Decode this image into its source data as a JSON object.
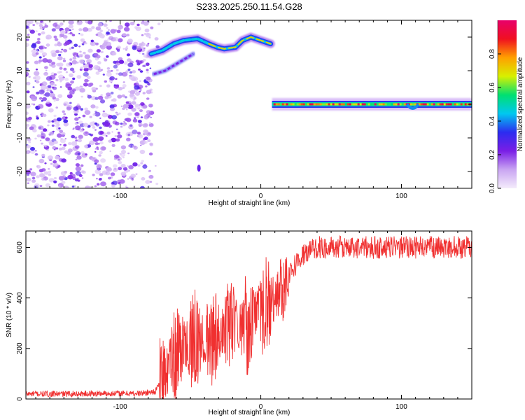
{
  "chart_data": [
    {
      "type": "heatmap",
      "title": "S233.2025.250.11.54.G28",
      "xlabel": "Height of straight line (km)",
      "ylabel": "Frequency (Hz)",
      "xlim": [
        -167,
        150
      ],
      "ylim": [
        -25,
        25
      ],
      "xticks": [
        -100,
        0,
        100
      ],
      "yticks": [
        -20,
        -10,
        0,
        10,
        20
      ],
      "grid": false,
      "colorbar": {
        "label": "Normalized spectral amplitude",
        "ticks": [
          0.0,
          0.2,
          0.4,
          0.6,
          0.8
        ],
        "range": [
          0,
          1
        ],
        "colors": [
          "#f4ecfb",
          "#c9a5f2",
          "#7a1ee6",
          "#2c2cf0",
          "#00c8f0",
          "#00e070",
          "#d8f000",
          "#ffa000",
          "#f01020",
          "#e8006a"
        ]
      },
      "regions": [
        {
          "name": "noise",
          "x": [
            -167,
            -77
          ],
          "y": [
            -25,
            25
          ],
          "amplitude": [
            0.05,
            0.3
          ]
        },
        {
          "name": "upper trace",
          "x": [
            -78,
            8
          ],
          "y_path": [
            [
              -78,
              15
            ],
            [
              -70,
              16
            ],
            [
              -62,
              18
            ],
            [
              -55,
              19
            ],
            [
              -45,
              19.5
            ],
            [
              -37,
              18
            ],
            [
              -31,
              17
            ],
            [
              -26,
              16.5
            ],
            [
              -18,
              17
            ],
            [
              -13,
              19
            ],
            [
              -7,
              20
            ],
            [
              0,
              19
            ],
            [
              7,
              18
            ]
          ],
          "amplitude": [
            0.3,
            0.9
          ]
        },
        {
          "name": "lower branch",
          "x": [
            -76,
            -48
          ],
          "y_path": [
            [
              -76,
              9
            ],
            [
              -68,
              10
            ],
            [
              -60,
              12
            ],
            [
              -52,
              14
            ],
            [
              -48,
              15
            ]
          ],
          "amplitude": [
            0.2,
            0.35
          ]
        },
        {
          "name": "carrier",
          "x": [
            8,
            150
          ],
          "y": 0,
          "amplitude": [
            0.4,
            1.0
          ]
        },
        {
          "name": "isolated spot",
          "x": [
            -44
          ],
          "y": [
            -19
          ],
          "amplitude": [
            0.2
          ]
        }
      ]
    },
    {
      "type": "line",
      "title": "",
      "xlabel": "Height of straight line (km)",
      "ylabel": "SNR (10 * v/v)",
      "xlim": [
        -167,
        150
      ],
      "ylim": [
        0,
        665
      ],
      "xticks": [
        -100,
        0,
        100
      ],
      "yticks": [
        0,
        200,
        400,
        600
      ],
      "grid": false,
      "series": [
        {
          "color": "#f03030",
          "x": [
            -167,
            -140,
            -110,
            -85,
            -75,
            -68,
            -60,
            -50,
            -40,
            -30,
            -20,
            -10,
            0,
            10,
            20,
            30,
            40,
            60,
            80,
            100,
            110,
            120,
            150
          ],
          "y": [
            20,
            20,
            22,
            22,
            30,
            100,
            180,
            220,
            240,
            260,
            280,
            300,
            340,
            400,
            500,
            570,
            600,
            600,
            600,
            600,
            600,
            600,
            600
          ]
        }
      ]
    }
  ]
}
